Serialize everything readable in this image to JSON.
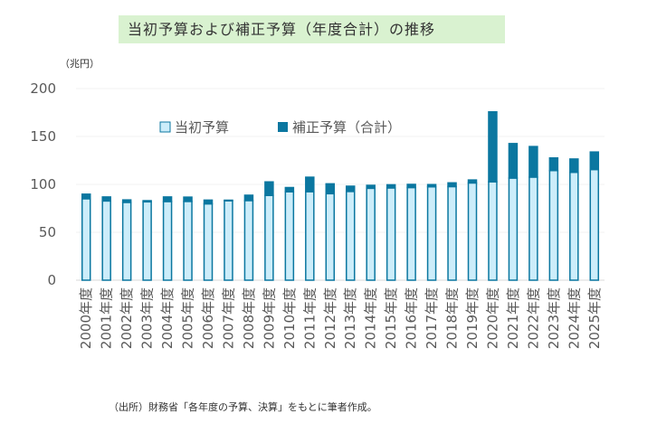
{
  "chart_data": {
    "type": "bar",
    "stacked": true,
    "title": "当初予算および補正予算（年度合計）の推移",
    "unit_label": "（兆円）",
    "xlabel": "",
    "ylabel": "",
    "ylim": [
      0,
      200
    ],
    "yticks": [
      0,
      50,
      100,
      150,
      200
    ],
    "grid": true,
    "legend_position": "top-left",
    "categories": [
      "2000年度",
      "2001年度",
      "2002年度",
      "2003年度",
      "2004年度",
      "2005年度",
      "2006年度",
      "2007年度",
      "2008年度",
      "2009年度",
      "2010年度",
      "2011年度",
      "2012年度",
      "2013年度",
      "2014年度",
      "2015年度",
      "2016年度",
      "2017年度",
      "2018年度",
      "2019年度",
      "2020年度",
      "2021年度",
      "2022年度",
      "2023年度",
      "2024年度",
      "2025年度"
    ],
    "series": [
      {
        "name": "当初予算",
        "color": "#ccedfa",
        "values": [
          85.0,
          82.7,
          81.2,
          81.8,
          82.1,
          82.2,
          79.7,
          82.9,
          83.1,
          88.5,
          92.3,
          92.4,
          90.3,
          92.6,
          95.9,
          96.3,
          96.7,
          97.5,
          97.7,
          101.5,
          102.7,
          106.6,
          107.6,
          114.4,
          112.6,
          115.5
        ]
      },
      {
        "name": "補正予算（合計）",
        "color": "#0b77a0",
        "values": [
          4.8,
          4.2,
          2.6,
          1.2,
          4.8,
          4.5,
          3.9,
          0.6,
          5.6,
          14.1,
          4.4,
          15.1,
          10.3,
          5.5,
          3.1,
          3.3,
          3.3,
          2.3,
          3.9,
          3.1,
          73.0,
          36.0,
          31.9,
          13.2,
          13.9,
          18.3
        ]
      }
    ],
    "source": "（出所）財務省「各年度の予算、決算」をもとに筆者作成。"
  }
}
